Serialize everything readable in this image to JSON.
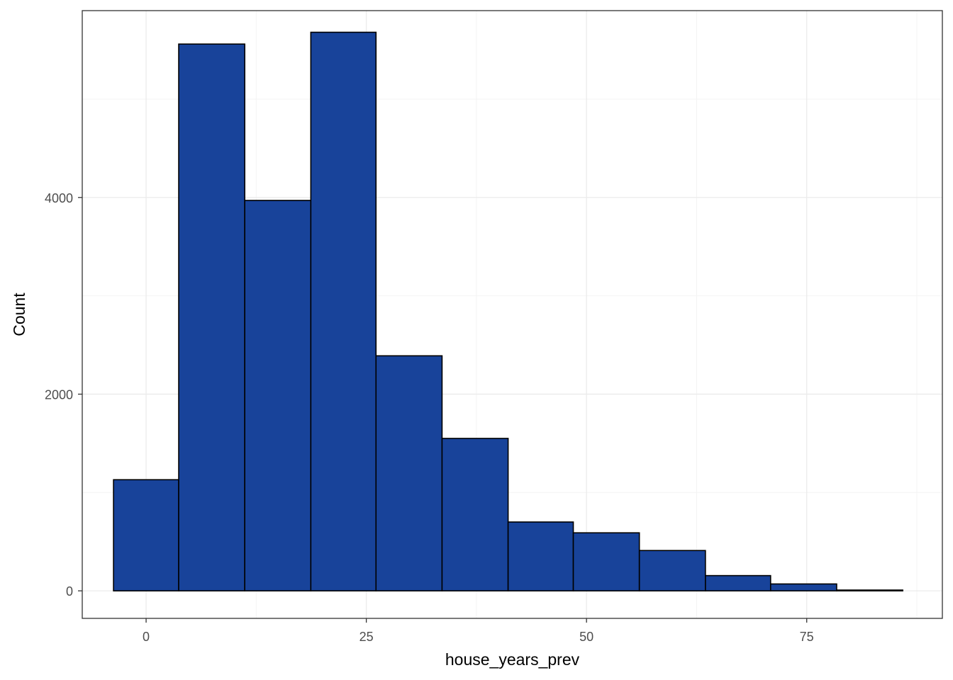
{
  "chart_data": {
    "type": "bar",
    "subtype": "histogram",
    "xlabel": "house_years_prev",
    "ylabel": "Count",
    "xlim": [
      -7.25,
      90.4
    ],
    "ylim": [
      -280,
      5900
    ],
    "x_ticks": [
      0,
      25,
      50,
      75
    ],
    "y_ticks": [
      0,
      2000,
      4000
    ],
    "x_minor_ticks": [
      -12.5,
      12.5,
      37.5,
      62.5,
      87.5
    ],
    "y_minor_ticks": [
      1000,
      3000,
      5000
    ],
    "grid": true,
    "bins": [
      {
        "x0": -3.7,
        "x1": 3.7,
        "count": 1130
      },
      {
        "x0": 3.7,
        "x1": 11.2,
        "count": 5560
      },
      {
        "x0": 11.2,
        "x1": 18.7,
        "count": 3970
      },
      {
        "x0": 18.7,
        "x1": 26.1,
        "count": 5680
      },
      {
        "x0": 26.1,
        "x1": 33.6,
        "count": 2390
      },
      {
        "x0": 33.6,
        "x1": 41.1,
        "count": 1550
      },
      {
        "x0": 41.1,
        "x1": 48.5,
        "count": 700
      },
      {
        "x0": 48.5,
        "x1": 56.0,
        "count": 590
      },
      {
        "x0": 56.0,
        "x1": 63.5,
        "count": 410
      },
      {
        "x0": 63.5,
        "x1": 70.9,
        "count": 155
      },
      {
        "x0": 70.9,
        "x1": 78.4,
        "count": 70
      },
      {
        "x0": 78.4,
        "x1": 85.9,
        "count": 8
      }
    ],
    "colors": {
      "bar_fill": "#18439A",
      "bar_stroke": "#000000",
      "grid_major": "#ebebeb",
      "grid_minor": "#f4f4f4",
      "panel_border": "#333333",
      "background": "#ffffff"
    }
  }
}
